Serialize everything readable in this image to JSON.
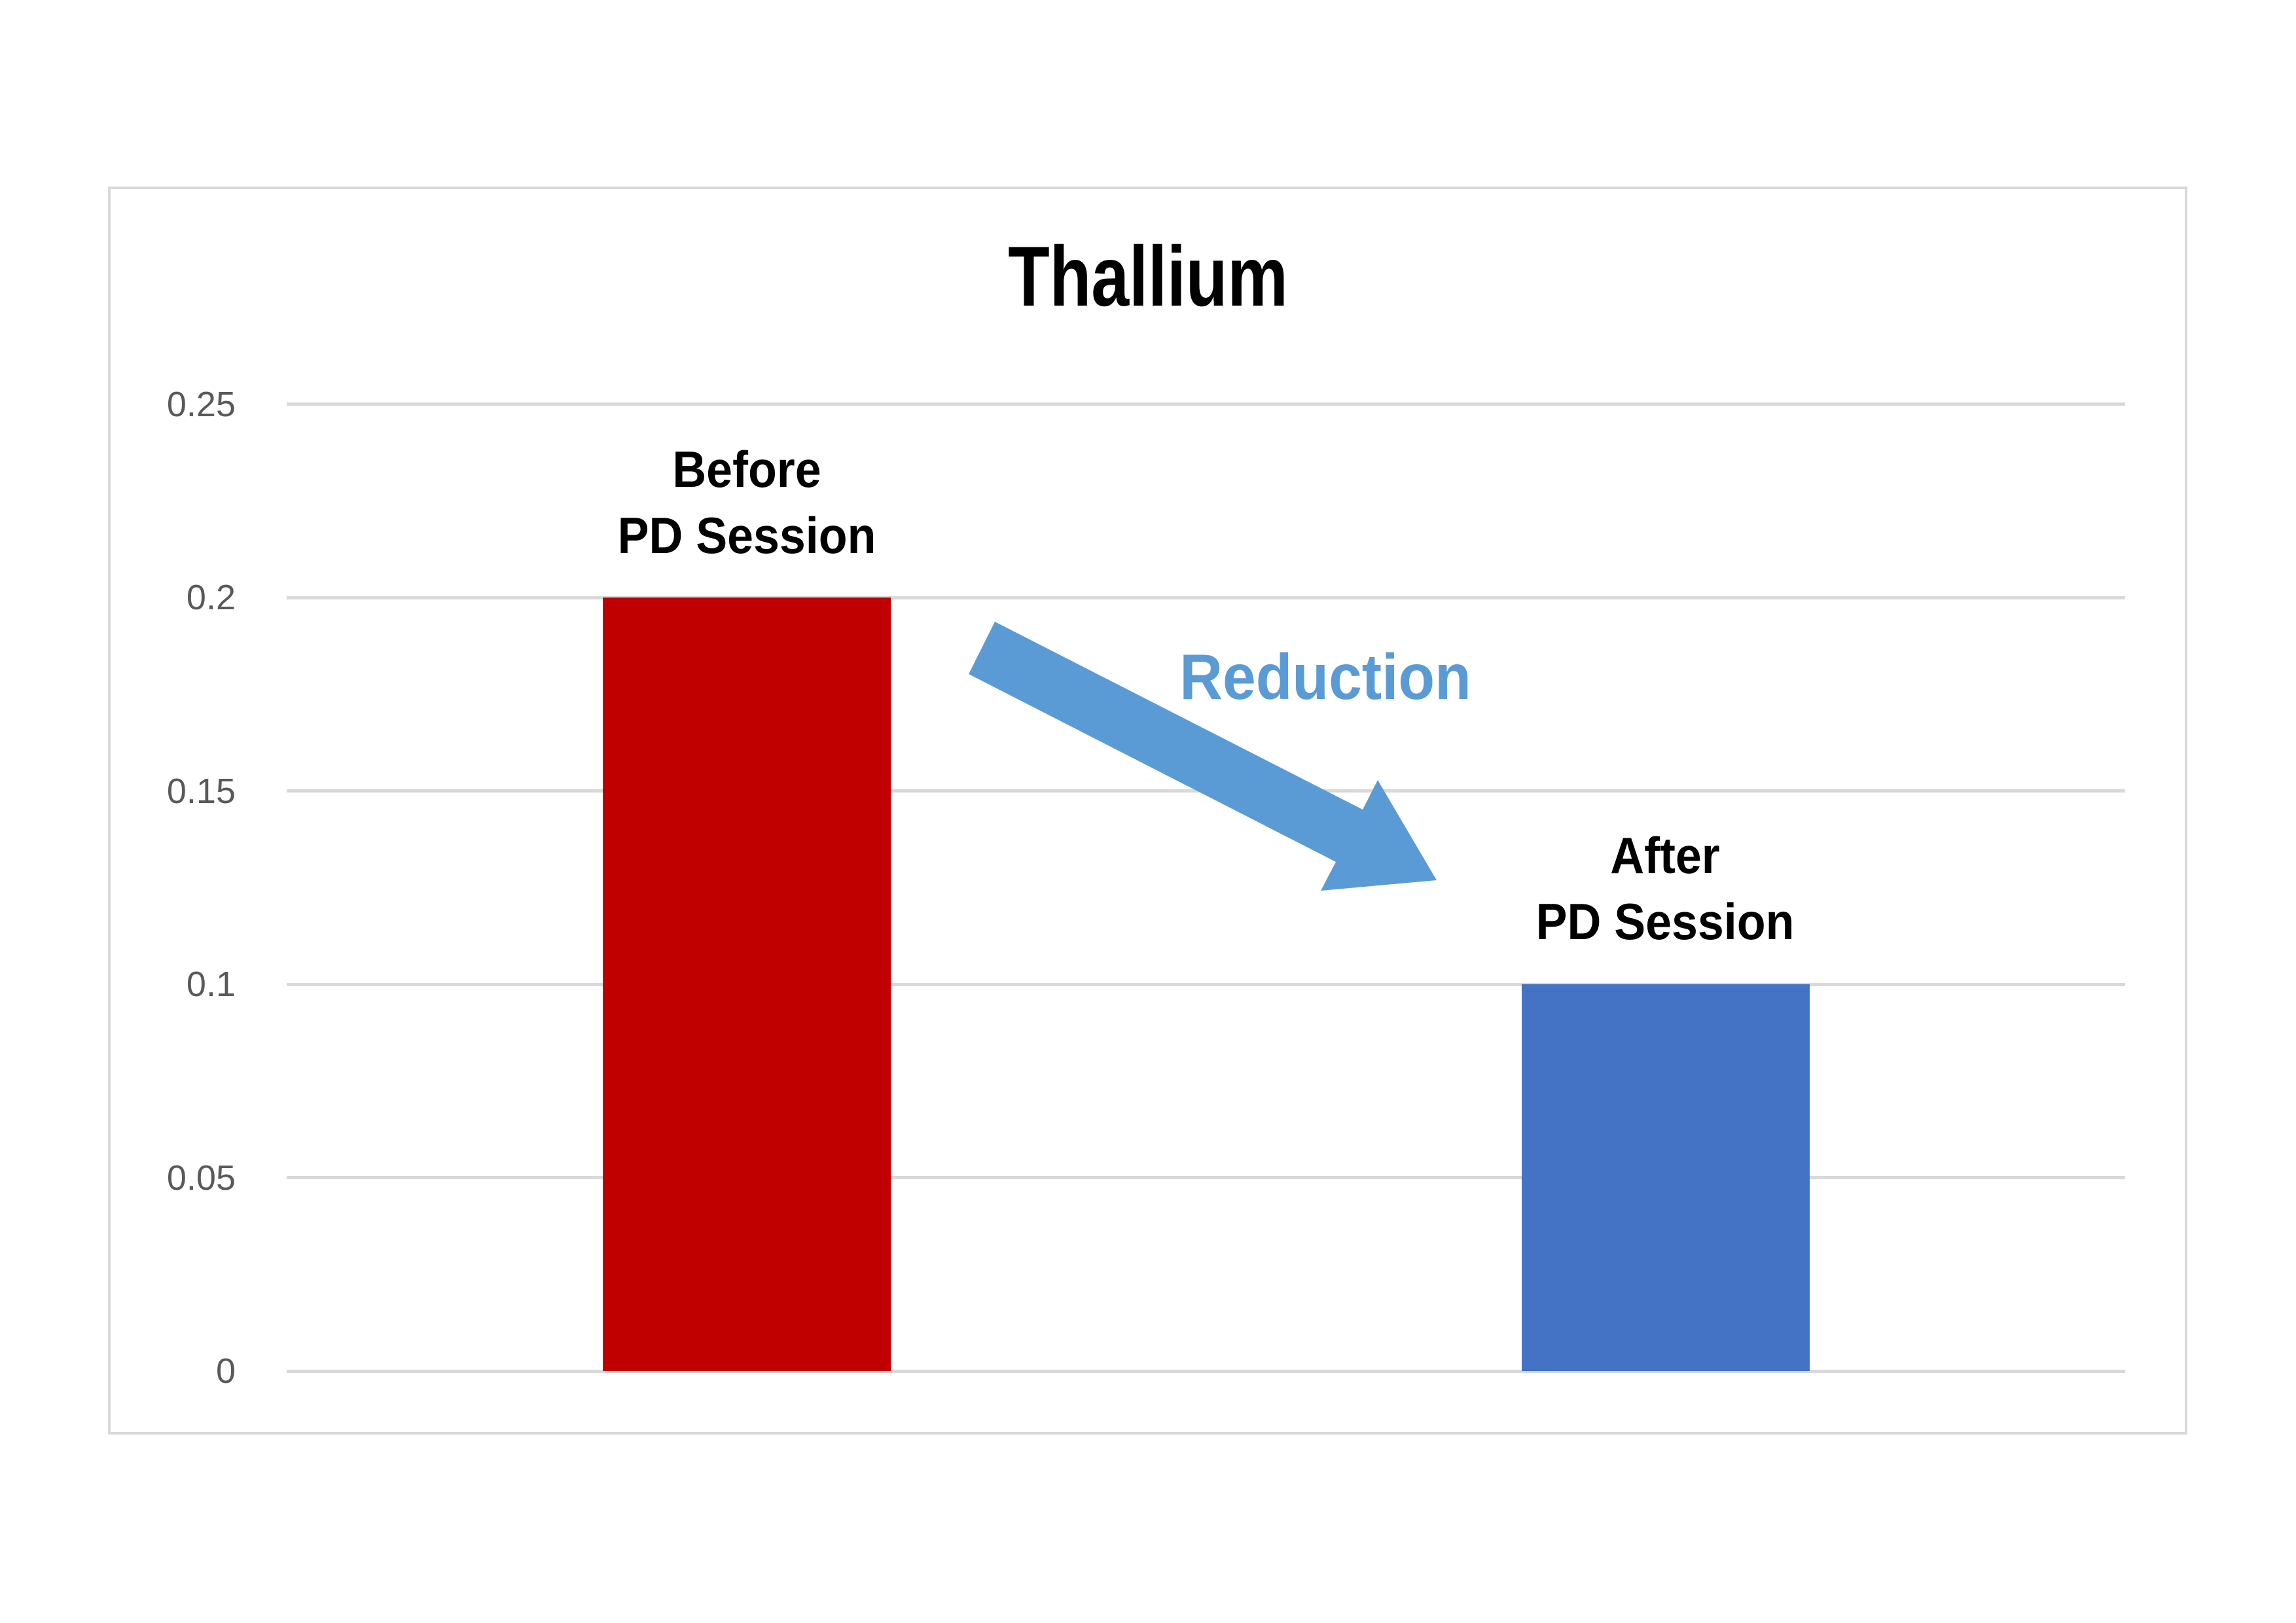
{
  "chart": {
    "background": "#ffffff",
    "border_color": "#d9d9d9",
    "grid_color": "#d9d9d9",
    "axis_label_color": "#595959",
    "text_color": "#000000"
  },
  "chart_data": {
    "type": "bar",
    "title": "Thallium",
    "categories": [
      "Before PD Session",
      "After PD Session"
    ],
    "values": [
      0.2,
      0.1
    ],
    "bar_colors": [
      "#c00000",
      "#4472c4"
    ],
    "bar_labels": [
      {
        "line1": "Before",
        "line2": "PD Session"
      },
      {
        "line1": "After",
        "line2": "PD Session"
      }
    ],
    "xlabel": "",
    "ylabel": "",
    "ylim": [
      0,
      0.25
    ],
    "yticks": [
      "0.25",
      "0.2",
      "0.15",
      "0.1",
      "0.05",
      "0"
    ],
    "ytick_values": [
      0.25,
      0.2,
      0.15,
      0.1,
      0.05,
      0
    ],
    "grid": "horizontal",
    "legend": "none",
    "annotation": {
      "label": "Reduction",
      "color": "#5b9bd5",
      "shape": "block-arrow-down-right"
    }
  }
}
